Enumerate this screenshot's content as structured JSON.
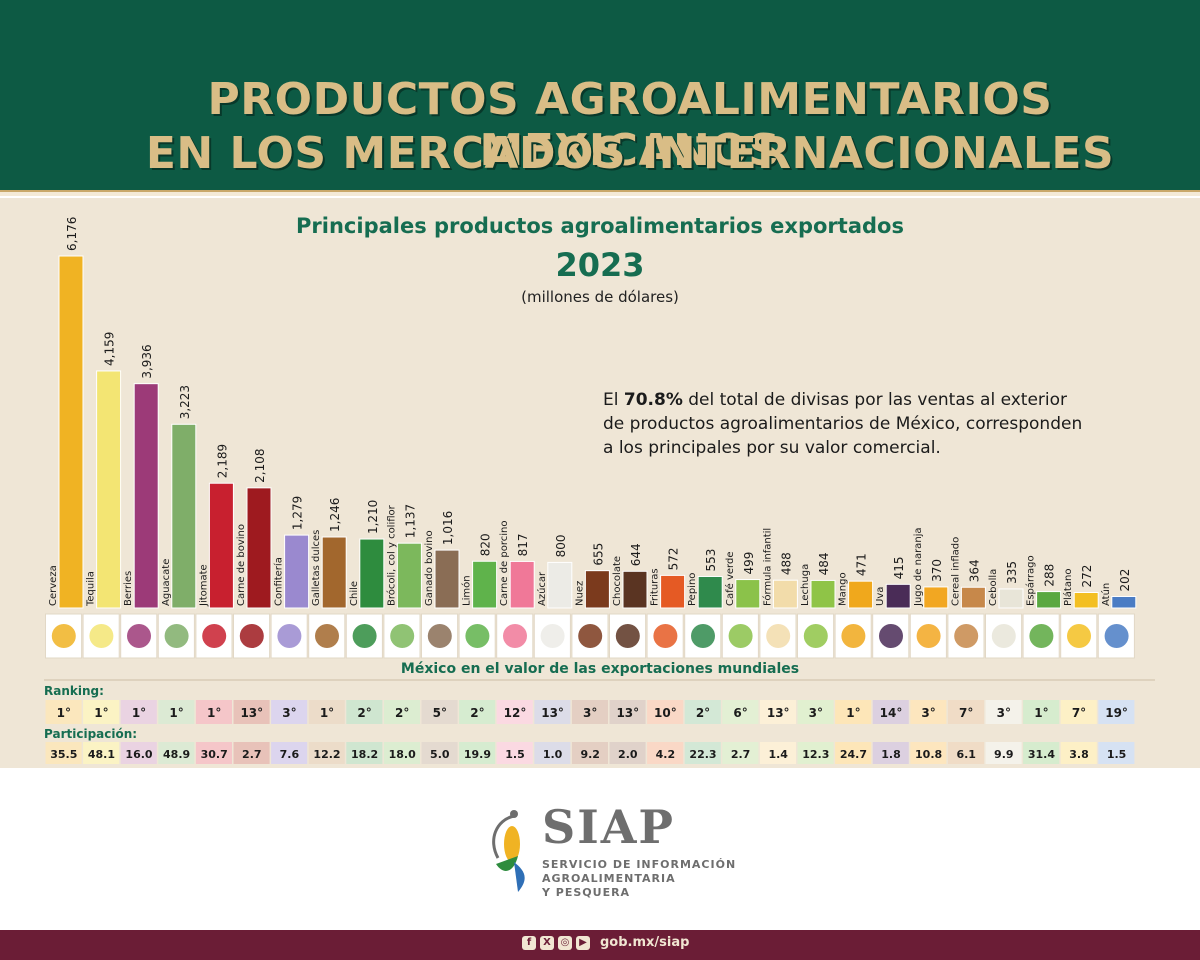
{
  "header": {
    "title_line1": "PRODUCTOS AGROALIMENTARIOS MEXICANOS",
    "title_line2": "EN LOS MERCADOS INTERNACIONALES"
  },
  "chart_data": {
    "type": "bar",
    "title": "Principales productos agroalimentarios exportados",
    "year": "2023",
    "units": "(millones de dólares)",
    "categories": [
      "Cerveza",
      "Tequila",
      "Berries",
      "Aguacate",
      "Jitomate",
      "Carne de bovino",
      "Confitería",
      "Galletas dulces",
      "Chile",
      "Brócoli, col y coliflor",
      "Ganado bovino",
      "Limón",
      "Carne de porcino",
      "Azúcar",
      "Nuez",
      "Chocolate",
      "Frituras",
      "Pepino",
      "Café verde",
      "Fórmula infantil",
      "Lechuga",
      "Mango",
      "Uva",
      "Jugo de naranja",
      "Cereal inflado",
      "Cebolla",
      "Espárrago",
      "Plátano",
      "Atún"
    ],
    "values": [
      6176,
      4159,
      3936,
      3223,
      2189,
      2108,
      1279,
      1246,
      1210,
      1137,
      1016,
      820,
      817,
      800,
      655,
      644,
      572,
      553,
      499,
      488,
      484,
      471,
      415,
      370,
      364,
      335,
      288,
      272,
      202
    ],
    "value_labels": [
      "6,176",
      "4,159",
      "3,936",
      "3,223",
      "2,189",
      "2,108",
      "1,279",
      "1,246",
      "1,210",
      "1,137",
      "1,016",
      "820",
      "817",
      "800",
      "655",
      "644",
      "572",
      "553",
      "499",
      "488",
      "484",
      "471",
      "415",
      "370",
      "364",
      "335",
      "288",
      "272",
      "202"
    ],
    "colors": [
      "#f0b323",
      "#f3e573",
      "#9c3a78",
      "#7fae69",
      "#c8202f",
      "#9e1a1f",
      "#9a89cf",
      "#a2672d",
      "#2e8c3e",
      "#7cb85c",
      "#8a6d55",
      "#5fb34b",
      "#f07898",
      "#ecebe6",
      "#7b3a1d",
      "#5a3422",
      "#e55a24",
      "#2f8a4c",
      "#8bc24a",
      "#f2dcaa",
      "#8fc447",
      "#f0a81c",
      "#4a2c57",
      "#f2a722",
      "#c7884a",
      "#e8e5d8",
      "#5aa840",
      "#f3bf22",
      "#4a7cc4"
    ],
    "ylim": [
      0,
      6200
    ]
  },
  "note": {
    "prefix": "El ",
    "highlight": "70.8%",
    "rest_line1": " del total de divisas por las ventas al exterior",
    "line2": "de productos agroalimentarios de México, corresponden",
    "line3": "a los principales por su valor comercial."
  },
  "world": {
    "title": "México en el valor de las exportaciones mundiales",
    "ranking_label": "Ranking:",
    "share_label": "Participación:",
    "ranking": [
      "1°",
      "1°",
      "1°",
      "1°",
      "1°",
      "13°",
      "3°",
      "1°",
      "2°",
      "2°",
      "5°",
      "2°",
      "12°",
      "13°",
      "3°",
      "13°",
      "10°",
      "2°",
      "6°",
      "13°",
      "3°",
      "1°",
      "14°",
      "3°",
      "7°",
      "3°",
      "1°",
      "7°",
      "19°"
    ],
    "share": [
      "35.5",
      "48.1",
      "16.0",
      "48.9",
      "30.7",
      "2.7",
      "7.6",
      "12.2",
      "18.2",
      "18.0",
      "5.0",
      "19.9",
      "1.5",
      "1.0",
      "9.2",
      "2.0",
      "4.2",
      "22.3",
      "2.7",
      "1.4",
      "12.3",
      "24.7",
      "1.8",
      "10.8",
      "6.1",
      "9.9",
      "31.4",
      "3.8",
      "1.5"
    ],
    "cell_colors": [
      "#fbe7bd",
      "#fbf3c4",
      "#ead3e2",
      "#dcead4",
      "#f5c6c9",
      "#e8c2b9",
      "#dcd5ee",
      "#ecdcc9",
      "#cfe6d0",
      "#dcedd1",
      "#e4dad0",
      "#d6ecd0",
      "#fbd9e2",
      "#dcdce8",
      "#e4cfc3",
      "#e0d2ca",
      "#fad8c6",
      "#d3e8d6",
      "#e3f0d4",
      "#fcf0d7",
      "#e1f0d0",
      "#fde6b8",
      "#dcd0e0",
      "#fde6be",
      "#f0dcc6",
      "#f4f2ea",
      "#d6ecce",
      "#fdf0c6",
      "#d6e2f3"
    ]
  },
  "logo": {
    "name": "SIAP",
    "line1": "SERVICIO DE INFORMACIÓN",
    "line2": "AGROALIMENTARIA",
    "line3": "Y PESQUERA"
  },
  "footer": {
    "link": "gob.mx/siap",
    "icons": [
      "facebook-icon",
      "x-icon",
      "instagram-icon",
      "youtube-icon"
    ]
  }
}
